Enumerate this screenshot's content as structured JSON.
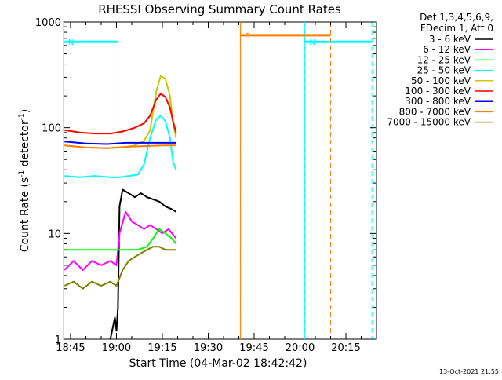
{
  "chart_data": {
    "type": "line",
    "title": "RHESSI Observing Summary Count Rates",
    "xlabel": "Start Time (04-Mar-02 18:42:42)",
    "ylabel_main": "Count Rate (s",
    "ylabel_sup1": "-1",
    "ylabel_mid": " detector",
    "ylabel_sup2": "-1",
    "ylabel_end": ")",
    "y_scale": "log",
    "xlim": [
      "18:42:42",
      "20:25:00"
    ],
    "ylim": [
      1,
      1000
    ],
    "x_ticks": [
      {
        "t": "18:45",
        "label": "18:45"
      },
      {
        "t": "19:00",
        "label": "19:00"
      },
      {
        "t": "19:15",
        "label": "19:15"
      },
      {
        "t": "19:30",
        "label": "19:30"
      },
      {
        "t": "19:45",
        "label": "19:45"
      },
      {
        "t": "20:00",
        "label": "20:00"
      },
      {
        "t": "20:15",
        "label": "20:15"
      }
    ],
    "y_ticks": [
      {
        "value": 1,
        "label": "1"
      },
      {
        "value": 10,
        "label": "10"
      },
      {
        "value": 100,
        "label": "100"
      },
      {
        "value": 1000,
        "label": "1000"
      }
    ],
    "legend_header": [
      "Det 1,3,4,5,6,9,",
      "FDecim 1, Att 0"
    ],
    "series": [
      {
        "name": "3 - 6 keV",
        "color": "#000000",
        "points": [
          [
            "18:58:00",
            1.0
          ],
          [
            "18:59:30",
            1.6
          ],
          [
            "19:00:00",
            1.2
          ],
          [
            "19:00:30",
            2.0
          ],
          [
            "19:01:00",
            18
          ],
          [
            "19:02:00",
            26
          ],
          [
            "19:04:00",
            24
          ],
          [
            "19:06:00",
            22
          ],
          [
            "19:08:00",
            24
          ],
          [
            "19:10:00",
            22
          ],
          [
            "19:12:00",
            21
          ],
          [
            "19:14:00",
            20
          ],
          [
            "19:16:00",
            18
          ],
          [
            "19:18:00",
            17
          ],
          [
            "19:19:30",
            16
          ]
        ]
      },
      {
        "name": "6 - 12 keV",
        "color": "#ff00ff",
        "points": [
          [
            "18:43:00",
            4.5
          ],
          [
            "18:46:00",
            5.5
          ],
          [
            "18:49:00",
            4.5
          ],
          [
            "18:52:00",
            5.5
          ],
          [
            "18:55:00",
            5.0
          ],
          [
            "18:58:00",
            5.5
          ],
          [
            "19:00:00",
            5.0
          ],
          [
            "19:01:00",
            10
          ],
          [
            "19:03:00",
            16
          ],
          [
            "19:05:00",
            13
          ],
          [
            "19:07:00",
            12
          ],
          [
            "19:09:00",
            11
          ],
          [
            "19:11:00",
            12
          ],
          [
            "19:13:00",
            11
          ],
          [
            "19:15:00",
            10
          ],
          [
            "19:17:00",
            11
          ],
          [
            "19:19:30",
            9
          ]
        ]
      },
      {
        "name": "12 - 25 keV",
        "color": "#00ff00",
        "points": [
          [
            "18:43:00",
            7
          ],
          [
            "18:47:00",
            7
          ],
          [
            "18:51:00",
            7
          ],
          [
            "18:55:00",
            7
          ],
          [
            "19:00:00",
            7
          ],
          [
            "19:04:00",
            7
          ],
          [
            "19:07:00",
            7
          ],
          [
            "19:10:00",
            7.5
          ],
          [
            "19:12:00",
            9
          ],
          [
            "19:14:00",
            11
          ],
          [
            "19:16:00",
            10
          ],
          [
            "19:18:00",
            9
          ],
          [
            "19:19:30",
            8
          ]
        ]
      },
      {
        "name": "25 - 50 keV",
        "color": "#00ffff",
        "points": [
          [
            "18:43:00",
            35
          ],
          [
            "18:48:00",
            34
          ],
          [
            "18:53:00",
            35
          ],
          [
            "18:58:00",
            34
          ],
          [
            "19:01:00",
            34
          ],
          [
            "19:04:00",
            35
          ],
          [
            "19:07:00",
            36
          ],
          [
            "19:09:00",
            45
          ],
          [
            "19:11:00",
            80
          ],
          [
            "19:13:00",
            120
          ],
          [
            "19:14:30",
            130
          ],
          [
            "19:16:00",
            115
          ],
          [
            "19:17:30",
            80
          ],
          [
            "19:18:30",
            48
          ],
          [
            "19:19:30",
            40
          ]
        ]
      },
      {
        "name": "50 - 100 keV",
        "color": "#c8c800",
        "points": [
          [
            "18:43:00",
            68
          ],
          [
            "18:50:00",
            65
          ],
          [
            "18:57:00",
            64
          ],
          [
            "19:02:00",
            65
          ],
          [
            "19:06:00",
            68
          ],
          [
            "19:09:00",
            75
          ],
          [
            "19:11:00",
            95
          ],
          [
            "19:13:00",
            220
          ],
          [
            "19:14:30",
            310
          ],
          [
            "19:16:00",
            290
          ],
          [
            "19:17:30",
            200
          ],
          [
            "19:18:30",
            110
          ],
          [
            "19:19:30",
            80
          ]
        ]
      },
      {
        "name": "100 - 300 keV",
        "color": "#ff0000",
        "points": [
          [
            "18:43:00",
            95
          ],
          [
            "18:48:00",
            90
          ],
          [
            "18:53:00",
            88
          ],
          [
            "18:58:00",
            88
          ],
          [
            "19:02:00",
            92
          ],
          [
            "19:06:00",
            100
          ],
          [
            "19:09:00",
            110
          ],
          [
            "19:11:00",
            130
          ],
          [
            "19:13:00",
            185
          ],
          [
            "19:14:30",
            210
          ],
          [
            "19:16:00",
            195
          ],
          [
            "19:17:30",
            155
          ],
          [
            "19:18:30",
            115
          ],
          [
            "19:19:30",
            90
          ]
        ]
      },
      {
        "name": "300 - 800 keV",
        "color": "#0000ff",
        "points": [
          [
            "18:43:00",
            74
          ],
          [
            "18:50:00",
            71
          ],
          [
            "18:57:00",
            70
          ],
          [
            "19:03:00",
            72
          ],
          [
            "19:09:00",
            72
          ],
          [
            "19:15:00",
            72
          ],
          [
            "19:19:30",
            72
          ]
        ]
      },
      {
        "name": "800 - 7000 keV",
        "color": "#ff7f00",
        "points": [
          [
            "18:43:00",
            68
          ],
          [
            "18:50:00",
            65
          ],
          [
            "18:57:00",
            64
          ],
          [
            "19:03:00",
            66
          ],
          [
            "19:09:00",
            67
          ],
          [
            "19:15:00",
            68
          ],
          [
            "19:19:30",
            68
          ]
        ]
      },
      {
        "name": "7000 - 15000 keV",
        "color": "#7f7f00",
        "points": [
          [
            "18:43:00",
            3.2
          ],
          [
            "18:46:00",
            3.5
          ],
          [
            "18:49:00",
            3.0
          ],
          [
            "18:52:00",
            3.5
          ],
          [
            "18:55:00",
            3.2
          ],
          [
            "18:58:00",
            3.5
          ],
          [
            "19:00:00",
            3.2
          ],
          [
            "19:02:00",
            4.5
          ],
          [
            "19:04:00",
            5.5
          ],
          [
            "19:06:00",
            6
          ],
          [
            "19:08:00",
            6.5
          ],
          [
            "19:10:00",
            7
          ],
          [
            "19:12:00",
            7.5
          ],
          [
            "19:14:00",
            7.5
          ],
          [
            "19:16:00",
            7
          ],
          [
            "19:18:00",
            7
          ],
          [
            "19:19:30",
            7
          ]
        ]
      }
    ],
    "state_bars": [
      {
        "label": "N",
        "color": "#00ffff",
        "segments": [
          [
            "18:42:42",
            "19:00:30"
          ],
          [
            "20:01:30",
            "20:23:30"
          ]
        ],
        "boundaries": [
          "19:00:30",
          "20:01:30",
          "20:23:30"
        ],
        "level": 650
      },
      {
        "label": "S",
        "color": "#ff7f00",
        "segments": [
          [
            "19:40:30",
            "20:10:00"
          ]
        ],
        "boundaries": [
          "19:40:30",
          "20:10:00"
        ],
        "level": 750
      }
    ]
  },
  "footer": {
    "timestamp": "13-Oct-2021 21:55"
  }
}
